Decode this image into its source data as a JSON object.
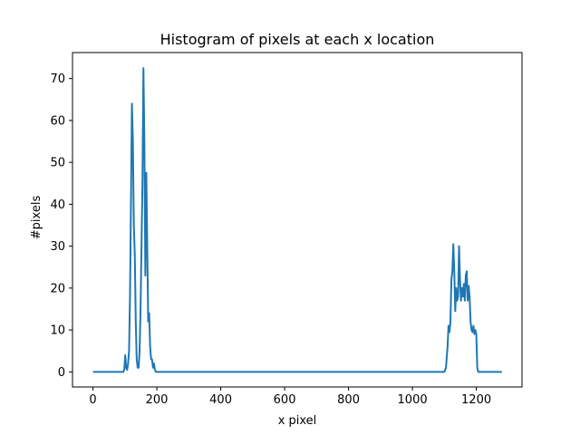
{
  "chart_data": {
    "type": "line",
    "title": "Histogram of pixels at each x location",
    "xlabel": "x pixel",
    "ylabel": "#pixels",
    "xlim": [
      -64,
      1343
    ],
    "ylim": [
      -3.6,
      76.2
    ],
    "xticks": [
      0,
      200,
      400,
      600,
      800,
      1000,
      1200
    ],
    "yticks": [
      0,
      10,
      20,
      30,
      40,
      50,
      60,
      70
    ],
    "grid": false,
    "line_color": "#1f77b4",
    "series": [
      {
        "x": [
          0,
          95,
          98,
          101,
          104,
          107,
          110,
          113,
          116,
          119,
          122,
          125,
          128,
          131,
          134,
          137,
          140,
          143,
          146,
          149,
          152,
          155,
          158,
          161,
          164,
          167,
          170,
          173,
          176,
          179,
          182,
          185,
          188,
          191,
          194,
          197,
          200,
          205,
          300,
          500,
          700,
          900,
          1000,
          1100,
          1105,
          1110,
          1113,
          1116,
          1119,
          1122,
          1125,
          1128,
          1131,
          1134,
          1137,
          1140,
          1143,
          1146,
          1149,
          1152,
          1155,
          1158,
          1161,
          1164,
          1167,
          1170,
          1173,
          1176,
          1179,
          1182,
          1185,
          1188,
          1191,
          1194,
          1197,
          1200,
          1203,
          1206,
          1209,
          1212,
          1215,
          1218,
          1221,
          1224,
          1227,
          1230,
          1240,
          1280
        ],
        "y": [
          0,
          0,
          0.5,
          4,
          1,
          0.5,
          2,
          5,
          18,
          40,
          64,
          55,
          35,
          28,
          12,
          3,
          1,
          1,
          5,
          15,
          30,
          45,
          72.5,
          55,
          23,
          47.5,
          30,
          12,
          14,
          6,
          3,
          3,
          1,
          2,
          0.5,
          0,
          0,
          0,
          0,
          0,
          0,
          0,
          0,
          0,
          1,
          6,
          11,
          9.5,
          12,
          22,
          24,
          30.5,
          24,
          14.5,
          20,
          17,
          18,
          30,
          22,
          17,
          20,
          18,
          21,
          17,
          23,
          24,
          17,
          20.5,
          18,
          12,
          10,
          9.5,
          11,
          9,
          10,
          9,
          1,
          0,
          0,
          0,
          0,
          0,
          0,
          0,
          0,
          0,
          0,
          0
        ]
      }
    ]
  }
}
